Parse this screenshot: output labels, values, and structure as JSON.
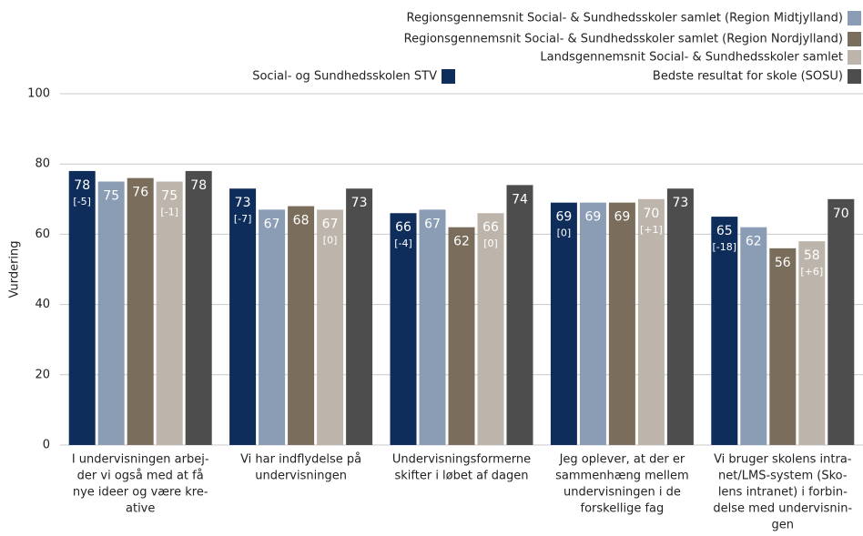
{
  "chart_data": {
    "type": "bar",
    "y_label": "Vurdering",
    "categories": [
      [
        "I undervisningen arbej-",
        "der vi også med at få",
        "nye ideer og være kre-",
        "ative"
      ],
      [
        "Vi har indflydelse på",
        "undervisningen"
      ],
      [
        "Undervisningsformerne",
        "skifter i løbet af dagen"
      ],
      [
        "Jeg oplever, at der er",
        "sammenhæng mellem",
        "undervisningen i de",
        "forskellige fag"
      ],
      [
        "Vi bruger skolens intra-",
        "net/LMS-system (Sko-",
        "lens intranet) i forbin-",
        "delse med undervisnin-",
        "gen"
      ]
    ],
    "series": [
      {
        "name": "Social- og Sundhedsskolen STV",
        "color": "#0f2d5a",
        "values": [
          78,
          73,
          66,
          69,
          65
        ],
        "annotations": [
          "[-5]",
          "[-7]",
          "[-4]",
          "[0]",
          "[-18]"
        ]
      },
      {
        "name": "Regionsgennemsnit Social- & Sundhedsskoler samlet (Region Midtjylland)",
        "color": "#8a9db5",
        "values": [
          75,
          67,
          67,
          69,
          62
        ]
      },
      {
        "name": "Regionsgennemsnit Social- & Sundhedsskoler samlet (Region Nordjylland)",
        "color": "#7a6d5c",
        "values": [
          76,
          68,
          62,
          69,
          56
        ]
      },
      {
        "name": "Landsgennemsnit Social- & Sundhedsskoler samlet",
        "color": "#bdb5ab",
        "values": [
          75,
          67,
          66,
          70,
          58
        ],
        "annotations": [
          "[-1]",
          "[0]",
          "[0]",
          "[+1]",
          "[+6]"
        ]
      },
      {
        "name": "Bedste resultat for skole (SOSU)",
        "color": "#4d4d4d",
        "values": [
          78,
          73,
          74,
          73,
          70
        ]
      }
    ],
    "ylim": [
      0,
      100
    ],
    "yticks": [
      0,
      20,
      40,
      60,
      80,
      100
    ],
    "grid": true
  }
}
